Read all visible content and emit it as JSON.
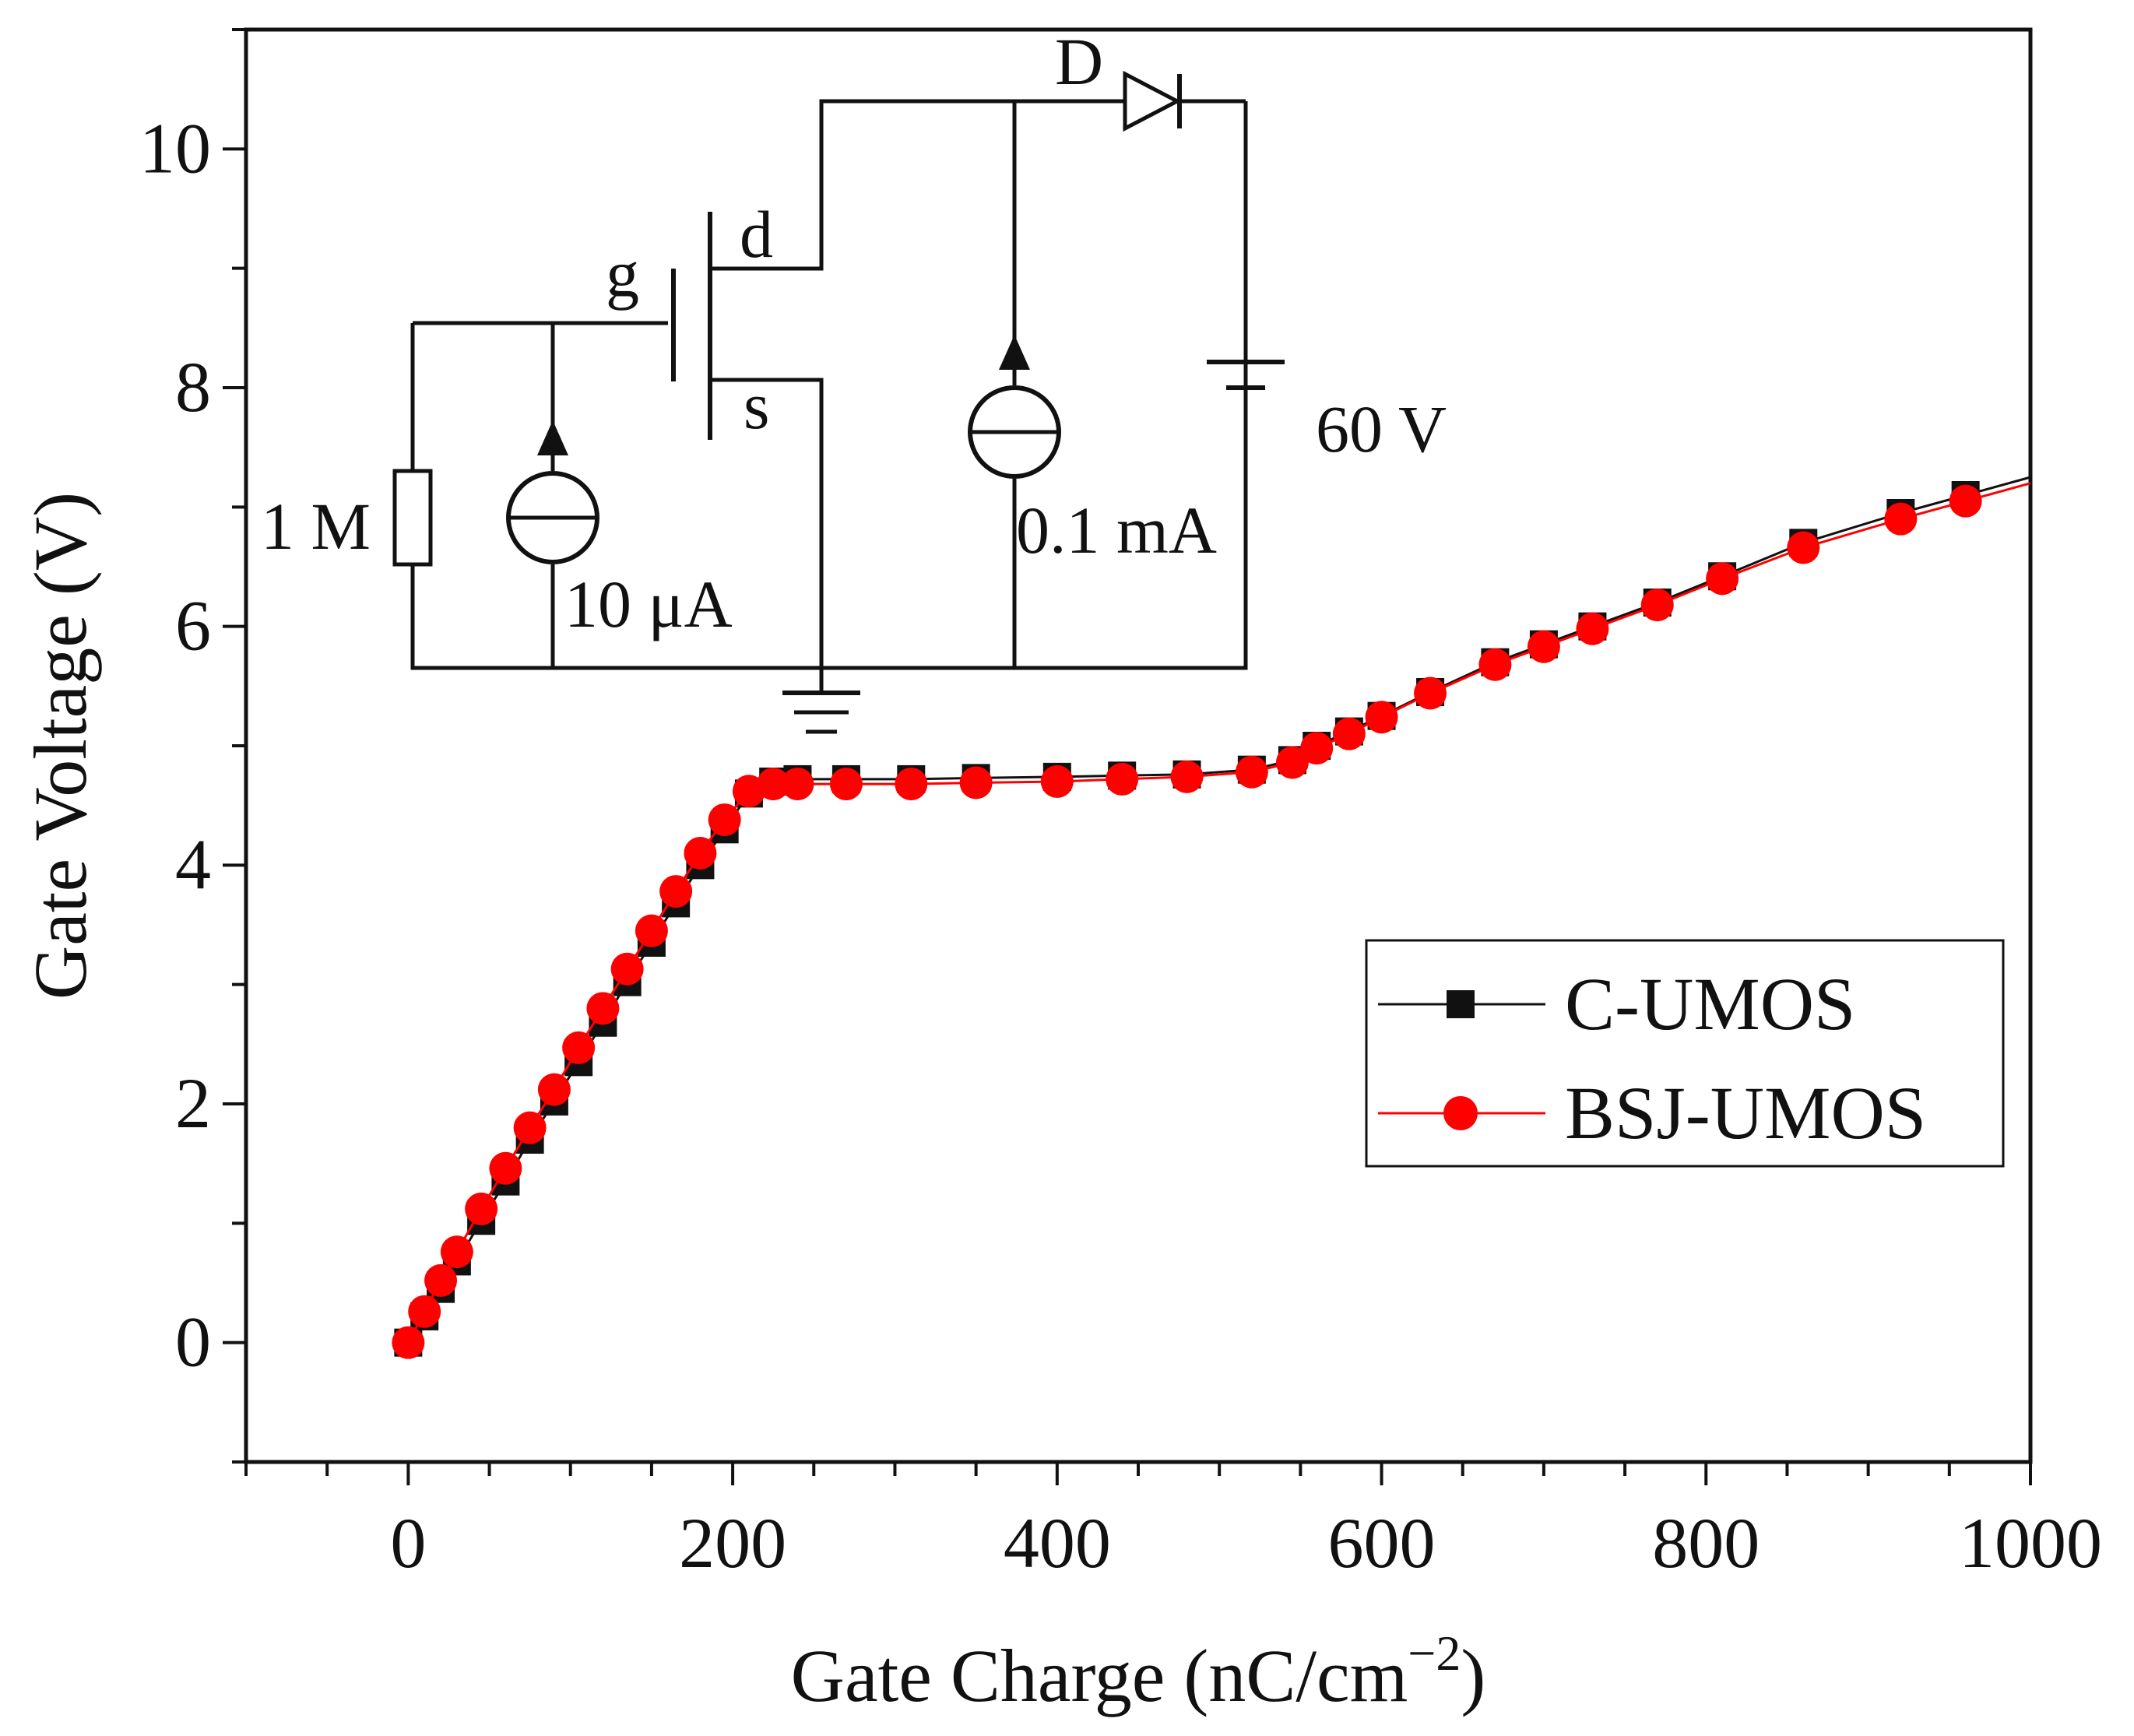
{
  "chart_data": {
    "type": "line",
    "title": "",
    "xlabel": "Gate Charge (nC/cm",
    "xlabel_sup": "−2",
    "xlabel_end": ")",
    "ylabel": "Gate Voltage (V)",
    "xlim": [
      -100,
      1000
    ],
    "ylim": [
      -1,
      11
    ],
    "x_ticks": [
      0,
      200,
      400,
      600,
      800,
      1000
    ],
    "x_tick_labels": [
      "0",
      "200",
      "400",
      "600",
      "800",
      "1000"
    ],
    "y_ticks": [
      0,
      2,
      4,
      6,
      8,
      10
    ],
    "y_tick_labels": [
      "0",
      "2",
      "4",
      "6",
      "8",
      "10"
    ],
    "legend_position": "right",
    "series": [
      {
        "name": "C-UMOS",
        "color": "#111111",
        "marker": "square",
        "x": [
          0,
          10,
          20,
          30,
          45,
          60,
          75,
          90,
          105,
          120,
          135,
          150,
          165,
          180,
          195,
          210,
          225,
          240,
          270,
          310,
          350,
          400,
          440,
          480,
          520,
          545,
          560,
          580,
          600,
          630,
          670,
          700,
          730,
          770,
          810,
          860,
          920,
          960
        ],
        "y": [
          0,
          0.22,
          0.45,
          0.68,
          1.02,
          1.35,
          1.7,
          2.02,
          2.35,
          2.68,
          3.02,
          3.35,
          3.68,
          4.0,
          4.3,
          4.6,
          4.7,
          4.72,
          4.72,
          4.72,
          4.73,
          4.74,
          4.75,
          4.76,
          4.8,
          4.88,
          5.0,
          5.12,
          5.25,
          5.45,
          5.7,
          5.85,
          6.0,
          6.2,
          6.42,
          6.7,
          6.95,
          7.1
        ]
      },
      {
        "name": "BSJ-UMOS",
        "color": "#ff0000",
        "marker": "circle",
        "x": [
          0,
          10,
          20,
          30,
          45,
          60,
          75,
          90,
          105,
          120,
          135,
          150,
          165,
          180,
          195,
          210,
          225,
          240,
          270,
          310,
          350,
          400,
          440,
          480,
          520,
          545,
          560,
          580,
          600,
          630,
          670,
          700,
          730,
          770,
          810,
          860,
          920,
          960
        ],
        "y": [
          0,
          0.26,
          0.52,
          0.76,
          1.12,
          1.46,
          1.8,
          2.12,
          2.47,
          2.8,
          3.13,
          3.45,
          3.78,
          4.1,
          4.38,
          4.62,
          4.68,
          4.68,
          4.68,
          4.68,
          4.69,
          4.7,
          4.72,
          4.74,
          4.78,
          4.86,
          4.98,
          5.1,
          5.24,
          5.44,
          5.68,
          5.83,
          5.98,
          6.18,
          6.4,
          6.66,
          6.9,
          7.05
        ]
      }
    ]
  },
  "circuit": {
    "gate_label": "g",
    "drain_label": "d",
    "source_label": "s",
    "diode_label": "D",
    "resistor_label": "1 M",
    "gate_source_label": "10 μA",
    "drain_source_label": "0.1 mA",
    "battery_label": "60 V"
  }
}
